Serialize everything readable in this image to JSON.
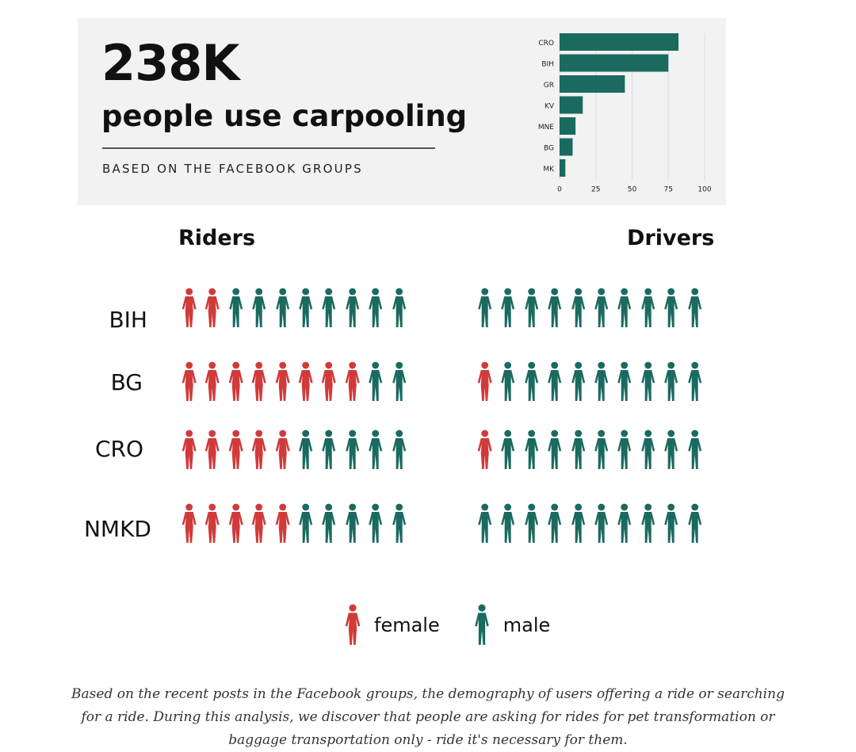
{
  "header": {
    "big_number": "238K",
    "headline": "people use carpooling",
    "subtitle": "BASED ON THE FACEBOOK GROUPS"
  },
  "chart_data": [
    {
      "type": "bar",
      "orientation": "horizontal",
      "categories": [
        "CRO",
        "BIH",
        "GR",
        "KV",
        "MNE",
        "BG",
        "MK"
      ],
      "values": [
        82,
        75,
        45,
        16,
        11,
        9,
        4
      ],
      "xlim": [
        0,
        100
      ],
      "xticks": [
        "0",
        "25",
        "50",
        "75",
        "100"
      ],
      "grid": true,
      "color": "#1a6a60"
    },
    {
      "type": "pictogram",
      "columns": [
        "Riders",
        "Drivers"
      ],
      "rows": [
        {
          "label": "BIH",
          "riders_female": 2,
          "drivers_female": 0
        },
        {
          "label": "BG",
          "riders_female": 8,
          "drivers_female": 1
        },
        {
          "label": "CRO",
          "riders_female": 5,
          "drivers_female": 1
        },
        {
          "label": "NMKD",
          "riders_female": 5,
          "drivers_female": 0
        }
      ],
      "icons_per_row": 10,
      "colors": {
        "female": "#d13a3a",
        "male": "#1a6a60"
      }
    }
  ],
  "legend": {
    "female": "female",
    "male": "male"
  },
  "note": "Based on the recent posts in the Facebook groups, the demography of users offering a ride or searching for a ride. During this analysis, we discover that people are asking for rides for pet transformation or baggage transportation only - ride it's necessary for them."
}
